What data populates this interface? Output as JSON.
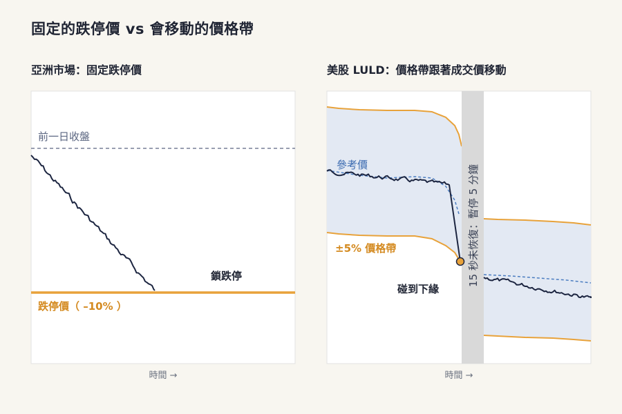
{
  "title": "固定的跌停價 vs 會移動的價格帶",
  "left_panel": {
    "title": "亞洲市場：固定跌停價",
    "prev_close_label": "前一日收盤",
    "limit_down_label": "鎖跌停",
    "floor_label": "跌停價（ –10% ）",
    "x_axis_label": "時間 →"
  },
  "right_panel": {
    "title": "美股 LULD：價格帶跟著成交價移動",
    "reference_label": "參考價",
    "band_label": "±5% 價格帶",
    "touch_label": "碰到下緣",
    "pause_label": "15 秒未恢復：暫停 5 分鐘",
    "x_axis_label": "時間 →"
  },
  "colors": {
    "price_line": "#1c2540",
    "band_line": "#e8a23a",
    "band_fill": "#e3e9f3",
    "reference_line": "#4a7cc0",
    "pause_bar": "#d9d9d9",
    "floor_line": "#e8a23a",
    "prev_close_line": "#5a6580"
  }
}
